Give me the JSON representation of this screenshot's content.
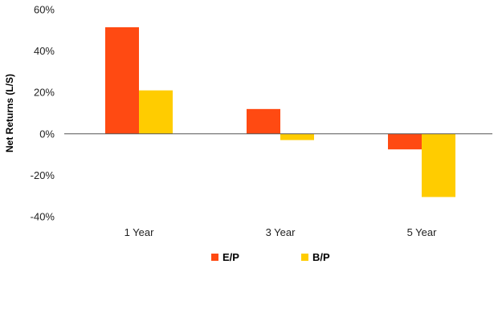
{
  "chart_data": {
    "type": "bar",
    "title": "",
    "xlabel": "",
    "ylabel": "Net Returns (L/S)",
    "ylim": [
      -40,
      60
    ],
    "yticks": [
      "60%",
      "40%",
      "20%",
      "0%",
      "-20%",
      "-40%"
    ],
    "ytick_values": [
      60,
      40,
      20,
      0,
      -20,
      -40
    ],
    "categories": [
      "1 Year",
      "3 Year",
      "5 Year"
    ],
    "series": [
      {
        "name": "E/P",
        "color": "#FF4A12",
        "values": [
          51.5,
          12,
          -7.5
        ]
      },
      {
        "name": "B/P",
        "color": "#FFCC00",
        "values": [
          21,
          -3,
          -30.5
        ]
      }
    ],
    "grid": false,
    "legend_position": "bottom"
  }
}
